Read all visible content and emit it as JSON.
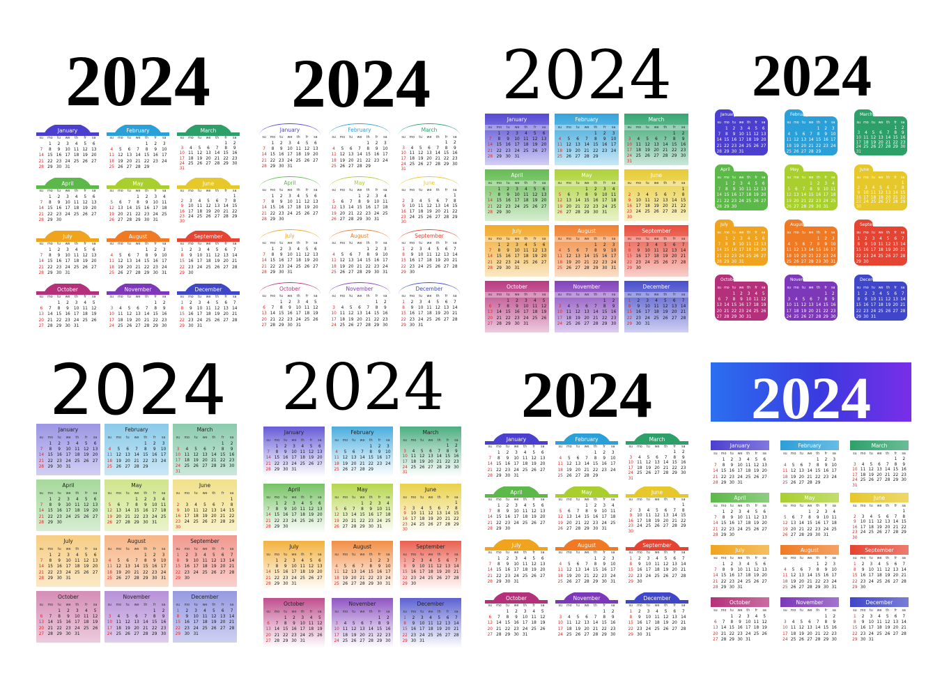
{
  "year": "2024",
  "weekdays": [
    "su",
    "mo",
    "tu",
    "we",
    "th",
    "fr",
    "sa"
  ],
  "months": [
    {
      "name": "January",
      "start": 1,
      "days": 31,
      "color": "#4b3fd0"
    },
    {
      "name": "February",
      "start": 4,
      "days": 29,
      "color": "#2a9fd8"
    },
    {
      "name": "March",
      "start": 5,
      "days": 31,
      "color": "#2da06a"
    },
    {
      "name": "April",
      "start": 1,
      "days": 30,
      "color": "#5db84a"
    },
    {
      "name": "May",
      "start": 3,
      "days": 31,
      "color": "#a9cf2e"
    },
    {
      "name": "June",
      "start": 6,
      "days": 30,
      "color": "#e6c82a"
    },
    {
      "name": "July",
      "start": 1,
      "days": 31,
      "color": "#f0a41e"
    },
    {
      "name": "August",
      "start": 4,
      "days": 31,
      "color": "#f07a24"
    },
    {
      "name": "September",
      "start": 0,
      "days": 30,
      "color": "#e64432"
    },
    {
      "name": "October",
      "start": 2,
      "days": 31,
      "color": "#b4307a"
    },
    {
      "name": "November",
      "start": 5,
      "days": 30,
      "color": "#7c38b8"
    },
    {
      "name": "December",
      "start": 0,
      "days": 31,
      "color": "#3f46c8"
    }
  ],
  "calendars": [
    {
      "id": "cal-1",
      "style": "arch-fill"
    },
    {
      "id": "cal-2",
      "style": "arc-line"
    },
    {
      "id": "cal-3",
      "style": "gradient-block"
    },
    {
      "id": "cal-4",
      "style": "tab-card"
    },
    {
      "id": "cal-5",
      "style": "pastel-block"
    },
    {
      "id": "cal-6",
      "style": "fade-block"
    },
    {
      "id": "cal-7",
      "style": "arch-fill"
    },
    {
      "id": "cal-8",
      "style": "bar-header"
    }
  ]
}
